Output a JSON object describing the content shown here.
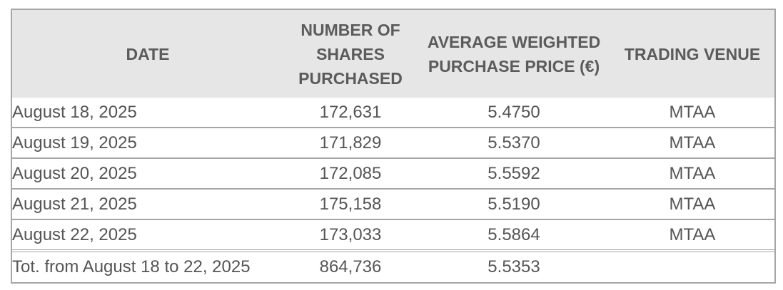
{
  "table": {
    "headers": {
      "date": "DATE",
      "shares": [
        "NUMBER OF",
        "SHARES",
        "PURCHASED"
      ],
      "price": [
        "AVERAGE WEIGHTED",
        "PURCHASE PRICE (€)"
      ],
      "venue": "TRADING VENUE"
    },
    "rows": [
      {
        "date": "August 18, 2025",
        "shares": "172,631",
        "price": "5.4750",
        "venue": "MTAA"
      },
      {
        "date": "August 19, 2025",
        "shares": "171,829",
        "price": "5.5370",
        "venue": "MTAA"
      },
      {
        "date": "August 20, 2025",
        "shares": "172,085",
        "price": "5.5592",
        "venue": "MTAA"
      },
      {
        "date": "August 21, 2025",
        "shares": "175,158",
        "price": "5.5190",
        "venue": "MTAA"
      },
      {
        "date": "August 22, 2025",
        "shares": "173,033",
        "price": "5.5864",
        "venue": "MTAA"
      }
    ],
    "total": {
      "label": "Tot. from August 18 to 22, 2025",
      "shares": "864,736",
      "price": "5.5353",
      "venue": ""
    }
  }
}
